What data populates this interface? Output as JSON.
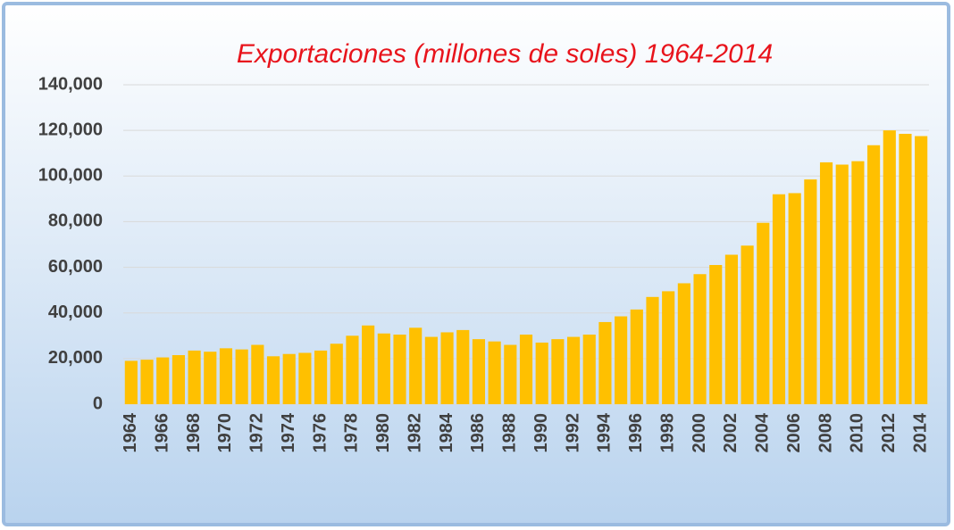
{
  "chart_data": {
    "type": "bar",
    "title": "Exportaciones (millones de soles) 1964-2014",
    "categories": [
      "1964",
      null,
      "1966",
      null,
      "1968",
      null,
      "1970",
      null,
      "1972",
      null,
      "1974",
      null,
      "1976",
      null,
      "1978",
      null,
      "1980",
      null,
      "1982",
      null,
      "1984",
      null,
      "1986",
      null,
      "1988",
      null,
      "1990",
      null,
      "1992",
      null,
      "1994",
      null,
      "1996",
      null,
      "1998",
      null,
      "2000",
      null,
      "2002",
      null,
      "2004",
      null,
      "2006",
      null,
      "2008",
      null,
      "2010",
      null,
      "2012",
      null,
      "2014"
    ],
    "values": [
      19000,
      19500,
      20500,
      21500,
      23500,
      23000,
      24500,
      24000,
      26000,
      21000,
      22000,
      22500,
      23500,
      26500,
      30000,
      34500,
      31000,
      30500,
      33500,
      29500,
      31500,
      32500,
      28500,
      27500,
      26000,
      30500,
      27000,
      28500,
      29500,
      30500,
      36000,
      38500,
      41500,
      47000,
      49500,
      53000,
      57000,
      61000,
      65500,
      69500,
      79500,
      92000,
      92500,
      98500,
      106000,
      105000,
      106500,
      113500,
      120000,
      118500,
      117500
    ],
    "color": "#ffc000",
    "ylim": [
      0,
      140000
    ],
    "yticks": [
      0,
      {
        "value": 20000,
        "label": "20,000"
      },
      {
        "value": 40000,
        "label": "40,000"
      },
      {
        "value": 60000,
        "label": "60,000"
      },
      {
        "value": 80000,
        "label": "80,000"
      },
      {
        "value": 100000,
        "label": "100,000"
      },
      {
        "value": 120000,
        "label": "120,000"
      },
      {
        "value": 140000,
        "label": "140,000"
      }
    ],
    "grid": true
  }
}
